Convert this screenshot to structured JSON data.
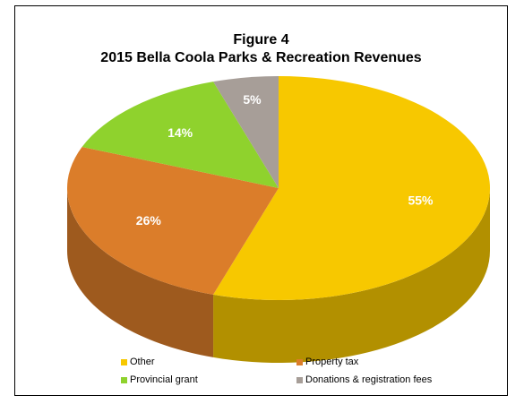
{
  "chart_data": {
    "type": "pie",
    "title": "Figure 4",
    "subtitle": "2015 Bella Coola Parks & Recreation Revenues",
    "slices": [
      {
        "label": "Other",
        "value": 55,
        "display": "55%",
        "color": "#f7c800"
      },
      {
        "label": "Property tax",
        "value": 26,
        "display": "26%",
        "color": "#db7d2a"
      },
      {
        "label": "Provincial grant",
        "value": 14,
        "display": "14%",
        "color": "#8fd22d"
      },
      {
        "label": "Donations & registration fees",
        "value": 5,
        "display": "5%",
        "color": "#a79e98"
      }
    ],
    "legend_position": "bottom",
    "style": "3d"
  }
}
